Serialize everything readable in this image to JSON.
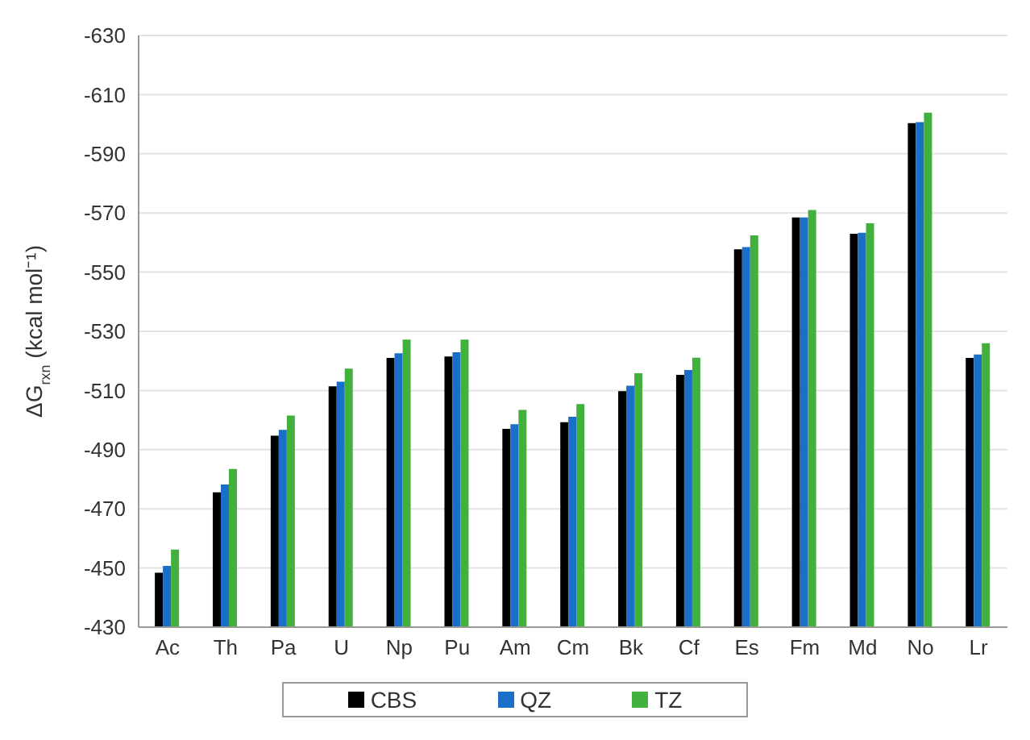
{
  "chart_data": {
    "type": "bar",
    "ylabel": "ΔG$_{rxn}$ (kcal mol⁻¹)",
    "categories": [
      "Ac",
      "Th",
      "Pa",
      "U",
      "Np",
      "Pu",
      "Am",
      "Cm",
      "Bk",
      "Cf",
      "Es",
      "Fm",
      "Md",
      "No",
      "Lr"
    ],
    "series": [
      {
        "name": "CBS",
        "color": "#000000",
        "values": [
          -448.4,
          -475.6,
          -494.7,
          -511.4,
          -521,
          -521.5,
          -497,
          -499.3,
          -509.8,
          -515.3,
          -557.7,
          -568.5,
          -563,
          -600.4,
          -521
        ]
      },
      {
        "name": "QZ",
        "color": "#1a70c8",
        "values": [
          -450.7,
          -478.2,
          -496.7,
          -513,
          -522.6,
          -522.9,
          -498.6,
          -501.1,
          -511.6,
          -516.9,
          -558.5,
          -568.5,
          -563.3,
          -600.7,
          -522.2
        ]
      },
      {
        "name": "TZ",
        "color": "#42b03c",
        "values": [
          -456.2,
          -483.5,
          -501.5,
          -517.4,
          -527.2,
          -527.2,
          -503.4,
          -505.4,
          -515.8,
          -521.1,
          -562.4,
          -571,
          -566.5,
          -603.9,
          -526
        ]
      }
    ],
    "ylim": [
      -430,
      -630
    ],
    "yticks": [
      -430,
      -450,
      -470,
      -490,
      -510,
      -530,
      -550,
      -570,
      -590,
      -610,
      -630
    ],
    "grid": "y",
    "legend": "bottom"
  }
}
